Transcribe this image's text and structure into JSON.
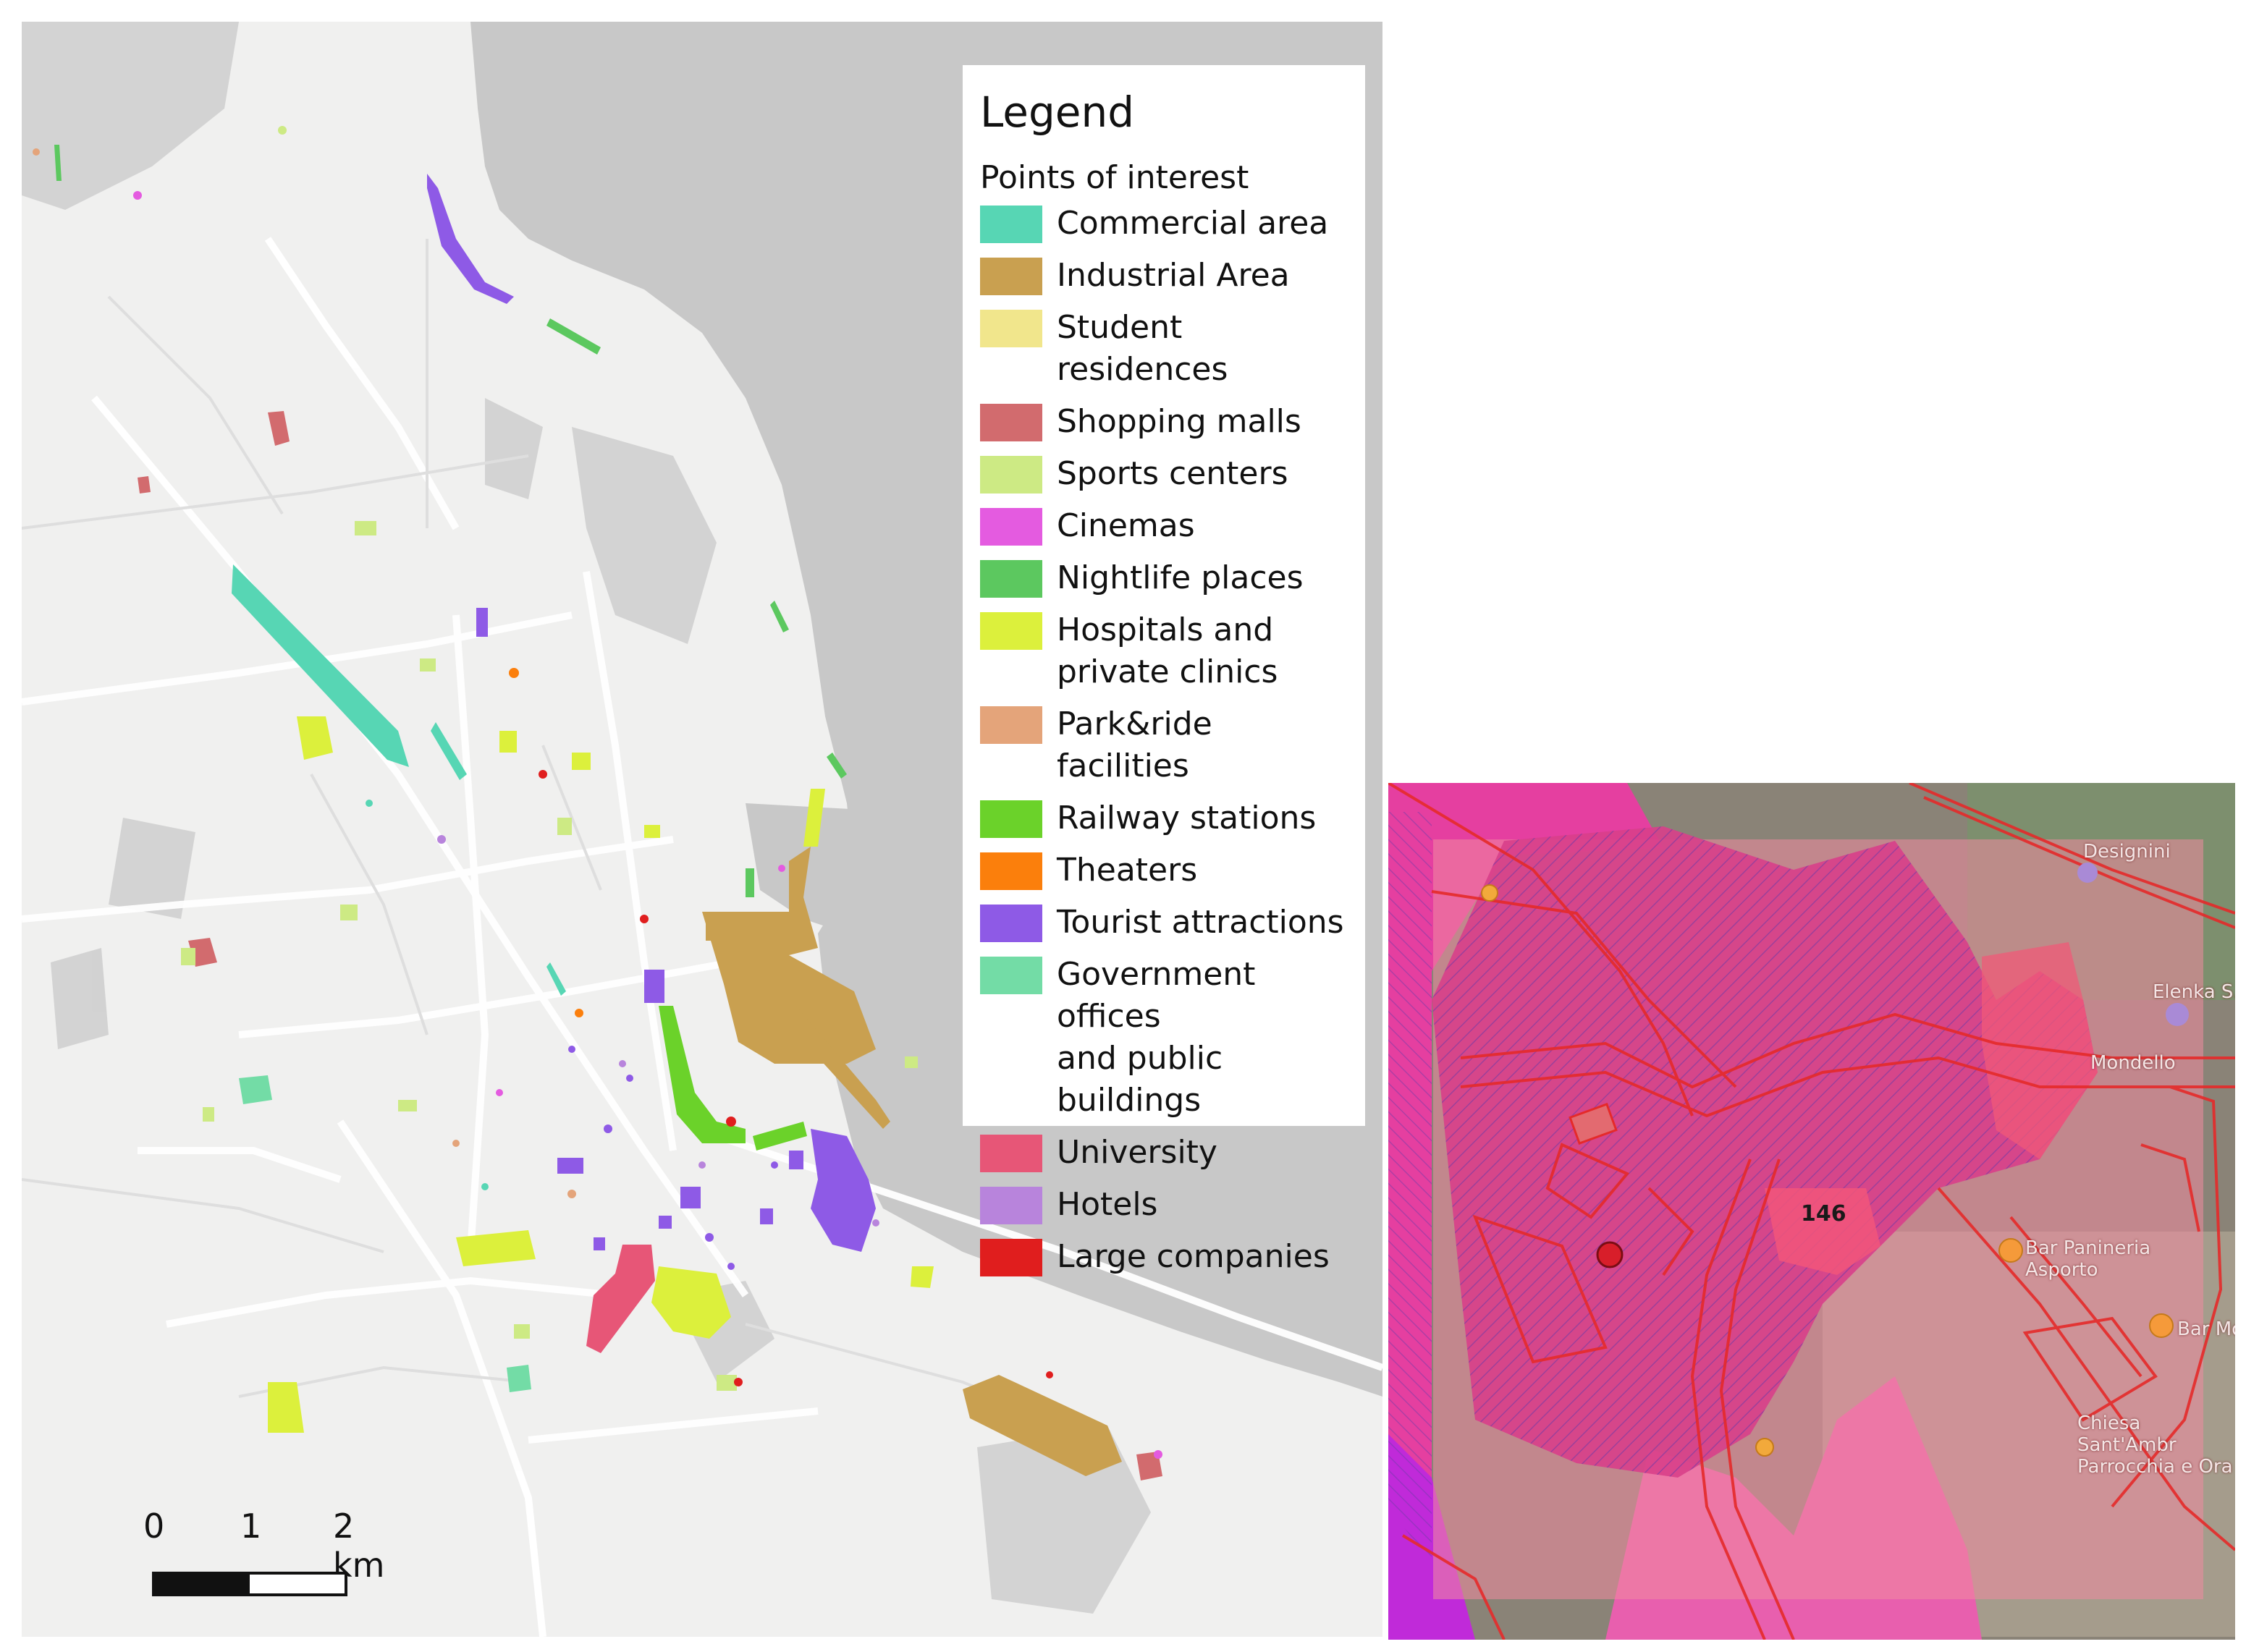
{
  "legend": {
    "title": "Legend",
    "subtitle": "Points of interest",
    "items": [
      {
        "label": "Commercial area",
        "color": "#57d6b4"
      },
      {
        "label": "Industrial Area",
        "color": "#c9a050"
      },
      {
        "label": "Student residences",
        "color": "#f1e68c"
      },
      {
        "label": "Shopping malls",
        "color": "#d26b6e"
      },
      {
        "label": "Sports centers",
        "color": "#cdea84"
      },
      {
        "label": "Cinemas",
        "color": "#e45be0"
      },
      {
        "label": "Nightlife places",
        "color": "#5cc85f"
      },
      {
        "label": "Hospitals and\nprivate clinics",
        "color": "#dcf03c"
      },
      {
        "label": "Park&ride facilities",
        "color": "#e4a47a"
      },
      {
        "label": "Railway stations",
        "color": "#6bd22a"
      },
      {
        "label": "Theaters",
        "color": "#fb7f0c"
      },
      {
        "label": "Tourist attractions",
        "color": "#8e5ae6"
      },
      {
        "label": "Government offices\nand public buildings",
        "color": "#73dca6"
      },
      {
        "label": "University",
        "color": "#e75677"
      },
      {
        "label": "Hotels",
        "color": "#b884dc"
      },
      {
        "label": "Large companies",
        "color": "#e01e1e"
      }
    ]
  },
  "scale": {
    "tick0": "0",
    "tick1": "1",
    "tick2": "2 km"
  },
  "detail_map": {
    "zone_label": "146",
    "poi_labels": [
      "Designini",
      "Elenka S.p",
      "Mondello",
      "Bar Panineria Asporto",
      "Bar Mo",
      "Chiesa Sant'Ambr Parrocchia e Ora"
    ]
  }
}
